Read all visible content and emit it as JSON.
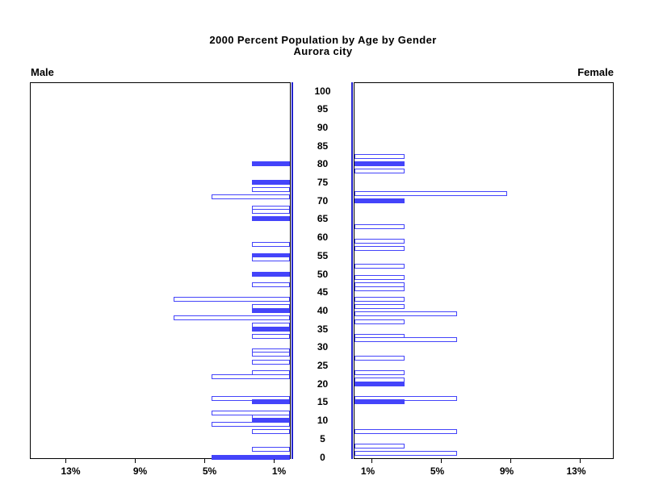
{
  "colors": {
    "bar_blue": "#4444fa",
    "bar_outline_fill": "#ffffff",
    "zero_refline_blue": "#2222cd",
    "frame_black": "#000000",
    "text_black": "#000000"
  },
  "chart_data": {
    "type": "bar",
    "subtype": "population_pyramid",
    "orientation": "horizontal",
    "title": "2000 Percent Population by Age by Gender",
    "subtitle": "Aurora city",
    "side_labels": {
      "left": "Male",
      "right": "Female"
    },
    "x_axis": {
      "unit": "percent",
      "tick_values_pct": [
        1,
        5,
        9,
        13
      ],
      "tick_suffix": "%",
      "max_pct": 15,
      "grid": false
    },
    "age_axis": {
      "min": 0,
      "max": 100,
      "step": 5,
      "tick_ages": [
        0,
        5,
        10,
        15,
        20,
        25,
        30,
        35,
        40,
        45,
        50,
        55,
        60,
        65,
        70,
        75,
        80,
        85,
        90,
        95,
        100
      ]
    },
    "legend": "none",
    "bar_style_note": "filled solid bars occur at ages that are multiples of 5; all other bars are white with blue outline",
    "series": [
      {
        "name": "Male",
        "side": "left",
        "bars": [
          {
            "age": 80,
            "pct": 2.2,
            "filled": true
          },
          {
            "age": 75,
            "pct": 2.2,
            "filled": true
          },
          {
            "age": 73,
            "pct": 2.2,
            "filled": false
          },
          {
            "age": 71,
            "pct": 4.5,
            "filled": false
          },
          {
            "age": 68,
            "pct": 2.2,
            "filled": false
          },
          {
            "age": 67,
            "pct": 2.2,
            "filled": false
          },
          {
            "age": 65,
            "pct": 2.2,
            "filled": true
          },
          {
            "age": 58,
            "pct": 2.2,
            "filled": false
          },
          {
            "age": 55,
            "pct": 2.2,
            "filled": true
          },
          {
            "age": 54,
            "pct": 2.2,
            "filled": false
          },
          {
            "age": 50,
            "pct": 2.2,
            "filled": true
          },
          {
            "age": 47,
            "pct": 2.2,
            "filled": false
          },
          {
            "age": 43,
            "pct": 6.7,
            "filled": false
          },
          {
            "age": 41,
            "pct": 2.2,
            "filled": false
          },
          {
            "age": 40,
            "pct": 2.2,
            "filled": true
          },
          {
            "age": 38,
            "pct": 6.7,
            "filled": false
          },
          {
            "age": 36,
            "pct": 2.2,
            "filled": false
          },
          {
            "age": 35,
            "pct": 2.2,
            "filled": true
          },
          {
            "age": 33,
            "pct": 2.2,
            "filled": false
          },
          {
            "age": 29,
            "pct": 2.2,
            "filled": false
          },
          {
            "age": 28,
            "pct": 2.2,
            "filled": false
          },
          {
            "age": 26,
            "pct": 2.2,
            "filled": false
          },
          {
            "age": 23,
            "pct": 2.2,
            "filled": false
          },
          {
            "age": 22,
            "pct": 4.5,
            "filled": false
          },
          {
            "age": 16,
            "pct": 4.5,
            "filled": false
          },
          {
            "age": 15,
            "pct": 2.2,
            "filled": true
          },
          {
            "age": 12,
            "pct": 4.5,
            "filled": false
          },
          {
            "age": 11,
            "pct": 2.2,
            "filled": false
          },
          {
            "age": 10,
            "pct": 2.2,
            "filled": true
          },
          {
            "age": 9,
            "pct": 4.5,
            "filled": false
          },
          {
            "age": 7,
            "pct": 2.2,
            "filled": false
          },
          {
            "age": 2,
            "pct": 2.2,
            "filled": false
          },
          {
            "age": 0,
            "pct": 4.5,
            "filled": true
          }
        ]
      },
      {
        "name": "Female",
        "side": "right",
        "bars": [
          {
            "age": 82,
            "pct": 2.9,
            "filled": false
          },
          {
            "age": 80,
            "pct": 2.9,
            "filled": true
          },
          {
            "age": 78,
            "pct": 2.9,
            "filled": false
          },
          {
            "age": 72,
            "pct": 8.8,
            "filled": false
          },
          {
            "age": 70,
            "pct": 2.9,
            "filled": true
          },
          {
            "age": 63,
            "pct": 2.9,
            "filled": false
          },
          {
            "age": 59,
            "pct": 2.9,
            "filled": false
          },
          {
            "age": 57,
            "pct": 2.9,
            "filled": false
          },
          {
            "age": 52,
            "pct": 2.9,
            "filled": false
          },
          {
            "age": 49,
            "pct": 2.9,
            "filled": false
          },
          {
            "age": 47,
            "pct": 2.9,
            "filled": false
          },
          {
            "age": 46,
            "pct": 2.9,
            "filled": false
          },
          {
            "age": 43,
            "pct": 2.9,
            "filled": false
          },
          {
            "age": 41,
            "pct": 2.9,
            "filled": false
          },
          {
            "age": 39,
            "pct": 5.9,
            "filled": false
          },
          {
            "age": 37,
            "pct": 2.9,
            "filled": false
          },
          {
            "age": 33,
            "pct": 2.9,
            "filled": false
          },
          {
            "age": 32,
            "pct": 5.9,
            "filled": false
          },
          {
            "age": 27,
            "pct": 2.9,
            "filled": false
          },
          {
            "age": 23,
            "pct": 2.9,
            "filled": false
          },
          {
            "age": 21,
            "pct": 2.9,
            "filled": false
          },
          {
            "age": 20,
            "pct": 2.9,
            "filled": true
          },
          {
            "age": 16,
            "pct": 5.9,
            "filled": false
          },
          {
            "age": 15,
            "pct": 2.9,
            "filled": true
          },
          {
            "age": 7,
            "pct": 5.9,
            "filled": false
          },
          {
            "age": 3,
            "pct": 2.9,
            "filled": false
          },
          {
            "age": 1,
            "pct": 5.9,
            "filled": false
          }
        ]
      }
    ]
  }
}
